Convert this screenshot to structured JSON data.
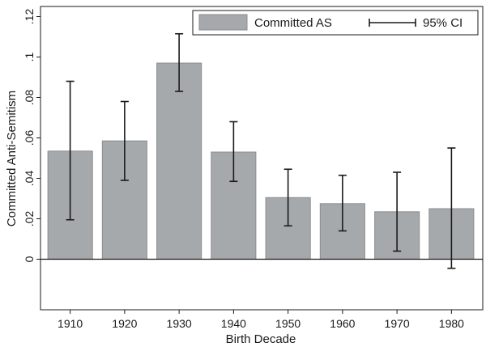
{
  "chart_data": {
    "type": "bar",
    "title": "",
    "xlabel": "Birth Decade",
    "ylabel": "Committed Anti-Semitism",
    "categories": [
      "1910",
      "1920",
      "1930",
      "1940",
      "1950",
      "1960",
      "1970",
      "1980"
    ],
    "series": [
      {
        "name": "Committed AS",
        "values": [
          0.0535,
          0.0585,
          0.097,
          0.053,
          0.0305,
          0.0275,
          0.0235,
          0.025
        ],
        "ci_low": [
          0.0195,
          0.039,
          0.083,
          0.0385,
          0.0165,
          0.014,
          0.004,
          -0.0045
        ],
        "ci_high": [
          0.088,
          0.078,
          0.1115,
          0.068,
          0.0445,
          0.0415,
          0.043,
          0.055
        ]
      }
    ],
    "error_bar_label": "95% CI",
    "yticks": [
      0,
      0.02,
      0.04,
      0.06,
      0.08,
      0.1,
      0.12
    ],
    "ytick_labels": [
      "0",
      ".02",
      ".04",
      ".06",
      ".08",
      ".1",
      ".12"
    ],
    "ylim": [
      -0.025,
      0.125
    ],
    "grid": false,
    "legend_position": "top-right",
    "colors": {
      "bar_fill": "#a6a9ac",
      "bar_stroke": "#8a8d90",
      "error_bar": "#1a1a1a",
      "axis": "#1a1a1a"
    }
  }
}
